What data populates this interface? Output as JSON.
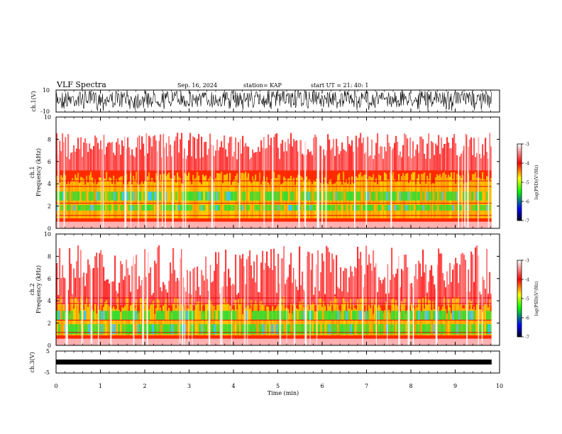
{
  "header": {
    "title": "VLF Spectra",
    "date": "Sep. 16, 2024",
    "station": "station= KAP",
    "start": "start  UT  =   21: 40: 1"
  },
  "chart_data": [
    {
      "type": "line",
      "name": "ch1-waveform",
      "ylabel": "ch.1(V)",
      "ylim": [
        -10,
        10
      ],
      "yticks": [
        "10",
        "-10"
      ],
      "xlim": [
        0,
        10
      ]
    },
    {
      "type": "heatmap",
      "name": "ch1-spectrogram",
      "ylabel": "ch.1\nFrequency (kHz)",
      "ylim": [
        0,
        10
      ],
      "yticks": [
        "0",
        "2",
        "4",
        "6",
        "8",
        "10"
      ],
      "xlim": [
        0,
        10
      ],
      "colorbar": {
        "label": "log(PSD)(V²/Hz)",
        "range": [
          -7,
          -3
        ],
        "ticks": [
          "-3",
          "-4",
          "-5",
          "-6",
          "-7"
        ]
      }
    },
    {
      "type": "heatmap",
      "name": "ch2-spectrogram",
      "ylabel": "ch.2\nFrequency (kHz)",
      "ylim": [
        0,
        10
      ],
      "yticks": [
        "0",
        "2",
        "4",
        "6",
        "8",
        "10"
      ],
      "xlim": [
        0,
        10
      ],
      "colorbar": {
        "label": "log(PSD)(V²/Hz)",
        "range": [
          -7,
          -3
        ],
        "ticks": [
          "-3",
          "-4",
          "-5",
          "-6",
          "-7"
        ]
      }
    },
    {
      "type": "line",
      "name": "ch3-waveform",
      "ylabel": "ch.3(V)",
      "ylim": [
        -5,
        5
      ],
      "yticks": [
        "5",
        "0",
        "-5"
      ],
      "xlim": [
        0,
        10
      ]
    }
  ],
  "xaxis": {
    "label": "Time (min)",
    "ticks": [
      "0",
      "1",
      "2",
      "3",
      "4",
      "5",
      "6",
      "7",
      "8",
      "9",
      "10"
    ],
    "data_end": 9.82
  },
  "colors": {
    "high": "#ffffff",
    "mid_high": "#ff0000",
    "mid": "#ffff00",
    "low_mid": "#00ff00",
    "low": "#0000ff",
    "bottom": "#000000"
  }
}
